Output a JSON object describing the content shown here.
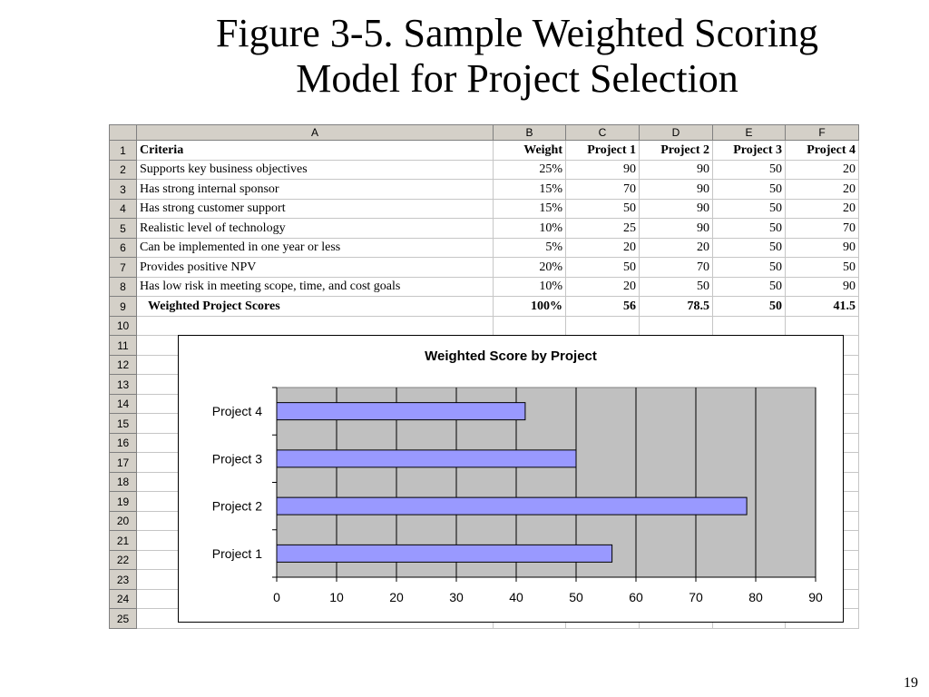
{
  "title": {
    "line1": "Figure 3-5. Sample Weighted Scoring",
    "line2": "Model for Project Selection"
  },
  "sheet": {
    "columns": [
      "A",
      "B",
      "C",
      "D",
      "E",
      "F"
    ],
    "header": {
      "criteria": "Criteria",
      "weight": "Weight",
      "projects": [
        "Project 1",
        "Project 2",
        "Project 3",
        "Project 4"
      ]
    },
    "rows": [
      {
        "criteria": "Supports key business objectives",
        "weight": "25%",
        "scores": [
          "90",
          "90",
          "50",
          "20"
        ]
      },
      {
        "criteria": "Has strong internal sponsor",
        "weight": "15%",
        "scores": [
          "70",
          "90",
          "50",
          "20"
        ]
      },
      {
        "criteria": "Has strong customer support",
        "weight": "15%",
        "scores": [
          "50",
          "90",
          "50",
          "20"
        ]
      },
      {
        "criteria": "Realistic level of technology",
        "weight": "10%",
        "scores": [
          "25",
          "90",
          "50",
          "70"
        ]
      },
      {
        "criteria": "Can be implemented in one year or less",
        "weight": "5%",
        "scores": [
          "20",
          "20",
          "50",
          "90"
        ]
      },
      {
        "criteria": "Provides positive NPV",
        "weight": "20%",
        "scores": [
          "50",
          "70",
          "50",
          "50"
        ]
      },
      {
        "criteria": "Has low risk in meeting scope, time, and cost goals",
        "weight": "10%",
        "scores": [
          "20",
          "50",
          "50",
          "90"
        ]
      }
    ],
    "totals": {
      "label": "Weighted Project Scores",
      "weight": "100%",
      "scores": [
        "56",
        "78.5",
        "50",
        "41.5"
      ]
    },
    "row_numbers": [
      "1",
      "2",
      "3",
      "4",
      "5",
      "6",
      "7",
      "8",
      "9",
      "10",
      "11",
      "12",
      "13",
      "14",
      "15",
      "16",
      "17",
      "18",
      "19",
      "20",
      "21",
      "22",
      "23",
      "24",
      "25"
    ]
  },
  "chart_data": {
    "type": "bar",
    "orientation": "horizontal",
    "title": "Weighted Score by Project",
    "categories": [
      "Project 1",
      "Project 2",
      "Project 3",
      "Project 4"
    ],
    "values": [
      56,
      78.5,
      50,
      41.5
    ],
    "xlim": [
      0,
      90
    ],
    "ticks": [
      0,
      10,
      20,
      30,
      40,
      50,
      60,
      70,
      80,
      90
    ],
    "xlabel": "",
    "ylabel": "",
    "grid": true,
    "legend": "none",
    "bar_color": "#9999ff",
    "plot_background": "#c0c0c0"
  },
  "page_number": "19"
}
